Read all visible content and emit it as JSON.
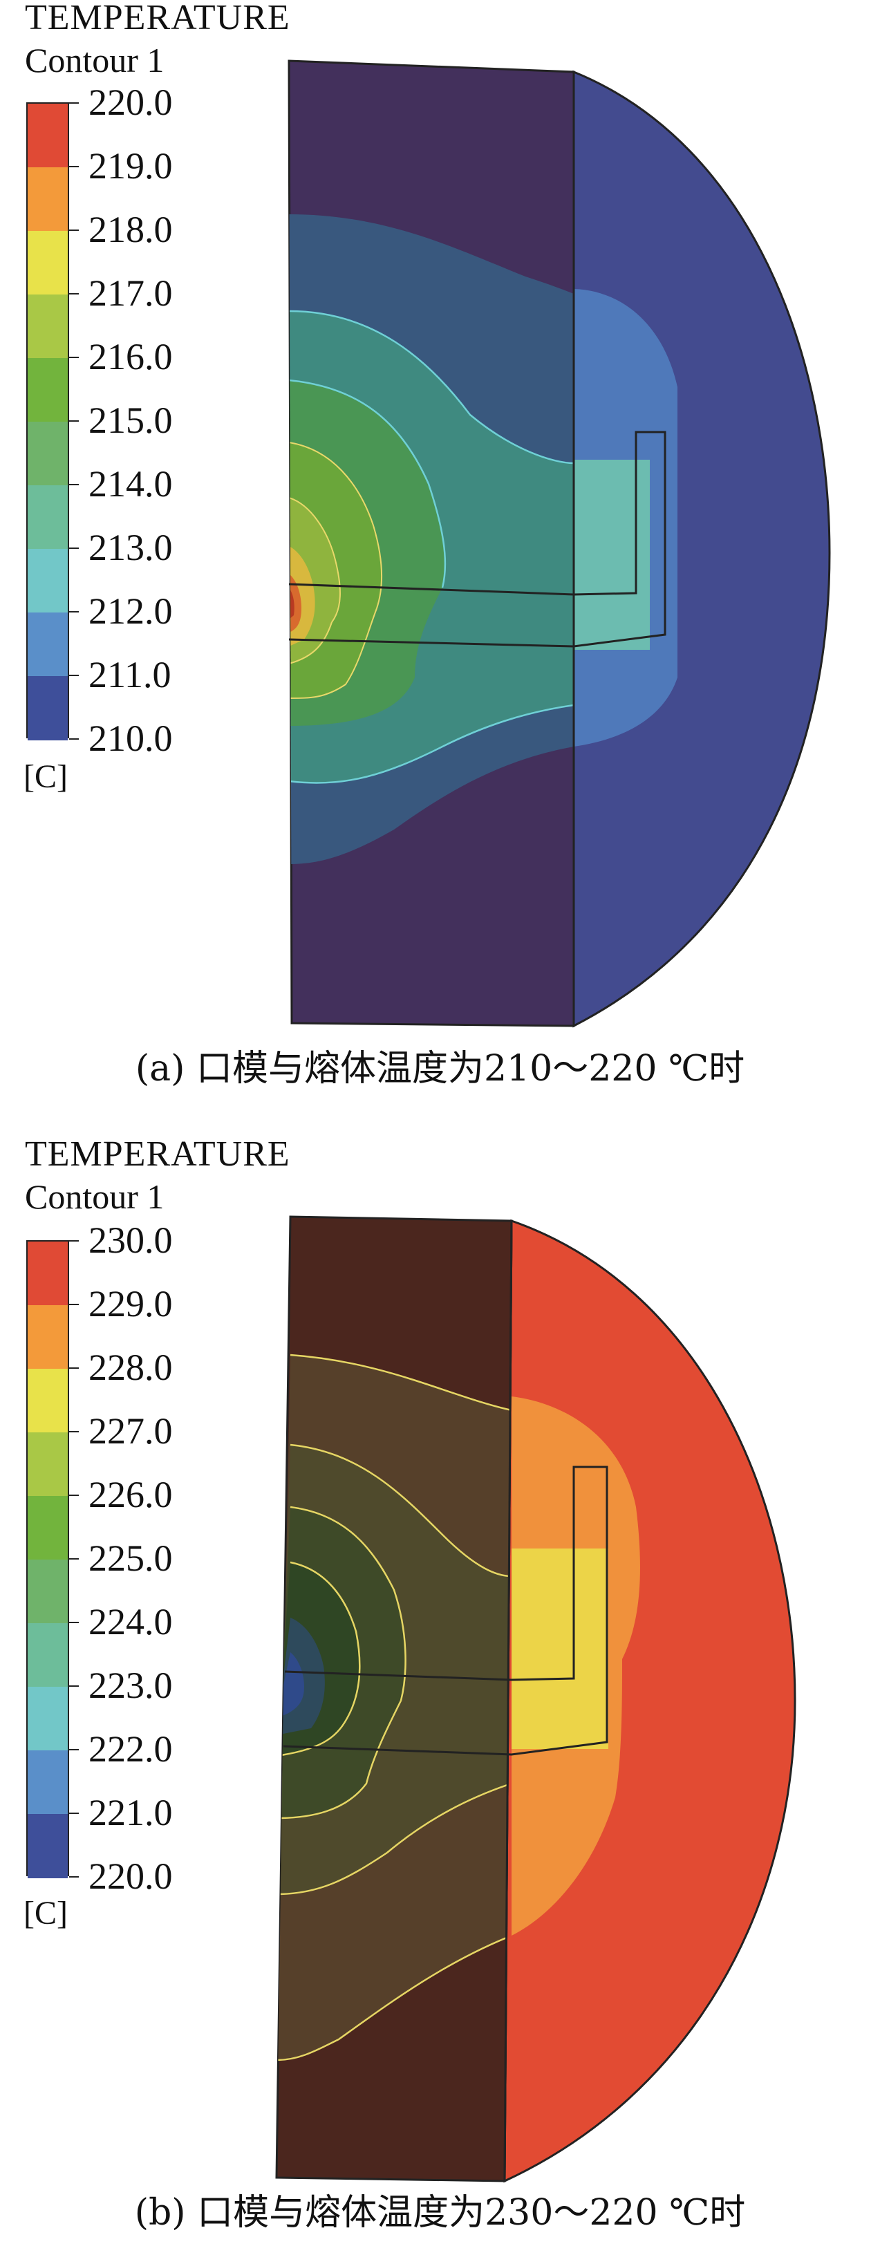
{
  "panels": [
    {
      "title": "TEMPERATURE",
      "subtitle": "Contour 1",
      "unit": "[C]",
      "scale_labels": [
        "220.0",
        "219.0",
        "218.0",
        "217.0",
        "216.0",
        "215.0",
        "214.0",
        "213.0",
        "212.0",
        "211.0",
        "210.0"
      ],
      "scale_colors": [
        "#e04a35",
        "#f39a3a",
        "#e8e24a",
        "#a9c846",
        "#72b43d",
        "#6fb36a",
        "#6dbd9a",
        "#72c7c8",
        "#5a8fc9",
        "#3e4f9a"
      ],
      "caption": "(a) 口模与熔体温度为210～220 ℃时"
    },
    {
      "title": "TEMPERATURE",
      "subtitle": "Contour 1",
      "unit": "[C]",
      "scale_labels": [
        "230.0",
        "229.0",
        "228.0",
        "227.0",
        "226.0",
        "225.0",
        "224.0",
        "223.0",
        "222.0",
        "221.0",
        "220.0"
      ],
      "scale_colors": [
        "#e04a35",
        "#f39a3a",
        "#e8e24a",
        "#a9c846",
        "#72b43d",
        "#6fb36a",
        "#6dbd9a",
        "#72c7c8",
        "#5a8fc9",
        "#3e4f9a"
      ],
      "caption": "(b) 口模与熔体温度为230～220 ℃时"
    }
  ]
}
